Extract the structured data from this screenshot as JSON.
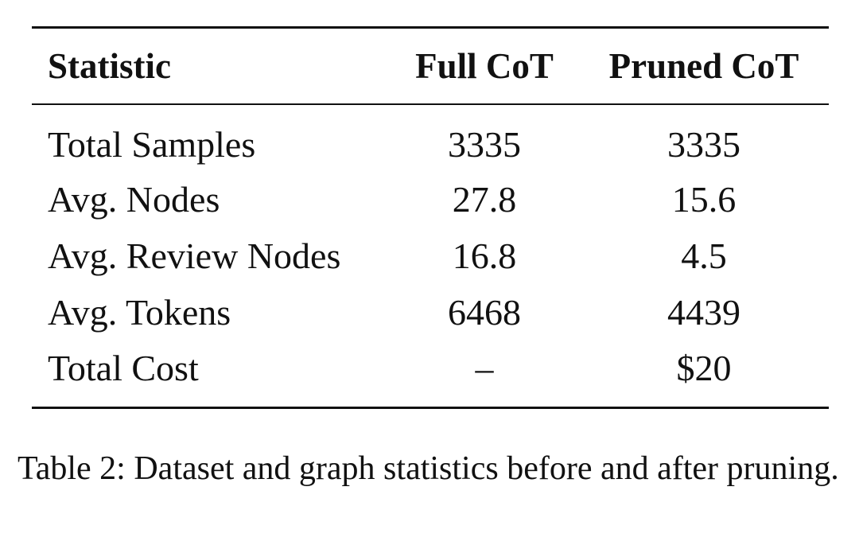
{
  "table": {
    "header": [
      "Statistic",
      "Full CoT",
      "Pruned CoT"
    ],
    "rows": [
      [
        "Total Samples",
        "3335",
        "3335"
      ],
      [
        "Avg. Nodes",
        "27.8",
        "15.6"
      ],
      [
        "Avg. Review Nodes",
        "16.8",
        "4.5"
      ],
      [
        "Avg. Tokens",
        "6468",
        "4439"
      ],
      [
        "Total Cost",
        "–",
        "$20"
      ]
    ]
  },
  "caption": "Table 2: Dataset and graph statistics before and after pruning."
}
